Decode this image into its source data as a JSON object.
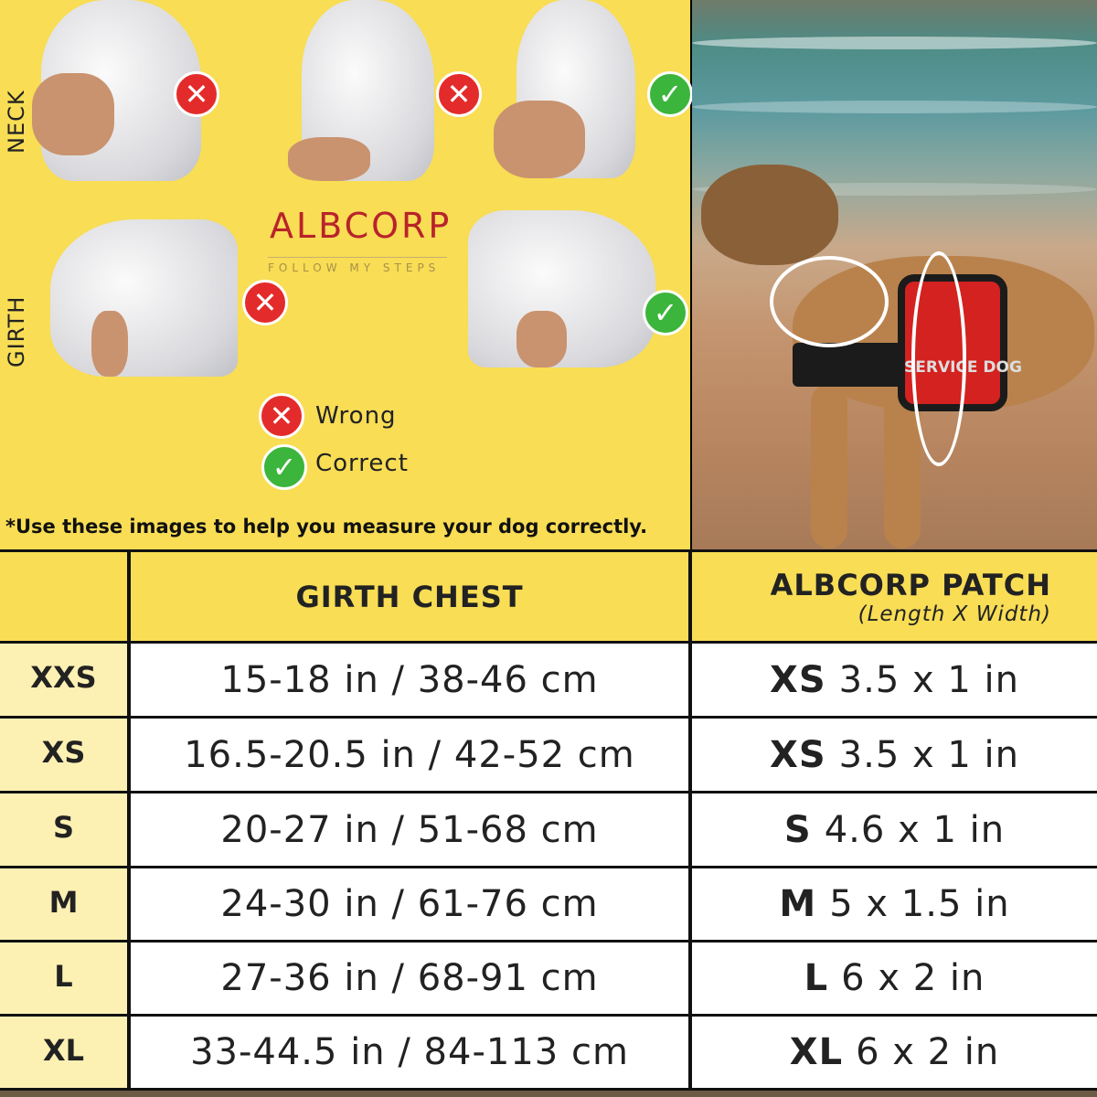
{
  "brand": {
    "name": "ALBCORP",
    "tagline": "FOLLOW MY STEPS"
  },
  "guide": {
    "row_labels": [
      "NECK",
      "GIRTH"
    ],
    "legend": [
      {
        "icon": "x-icon",
        "label": "Wrong",
        "color": "#e42b2b"
      },
      {
        "icon": "check-icon",
        "label": "Correct",
        "color": "#3bb53b"
      }
    ],
    "note": "*Use these images to help you measure your dog correctly."
  },
  "photo": {
    "patch_text": "SERVICE DOG"
  },
  "table": {
    "headers": {
      "size": "",
      "girth": "GIRTH CHEST",
      "patch": "ALBCORP PATCH",
      "patch_sub": "(Length X Width)"
    },
    "rows": [
      {
        "size": "XXS",
        "girth": "15-18 in / 38-46 cm",
        "patch_size": "XS",
        "patch_dim": "3.5 x 1 in"
      },
      {
        "size": "XS",
        "girth": "16.5-20.5 in / 42-52 cm",
        "patch_size": "XS",
        "patch_dim": "3.5 x 1 in"
      },
      {
        "size": "S",
        "girth": "20-27 in / 51-68 cm",
        "patch_size": "S",
        "patch_dim": "4.6 x 1 in"
      },
      {
        "size": "M",
        "girth": "24-30 in / 61-76 cm",
        "patch_size": "M",
        "patch_dim": "5 x 1.5 in"
      },
      {
        "size": "L",
        "girth": "27-36 in / 68-91 cm",
        "patch_size": "L",
        "patch_dim": "6 x 2 in"
      },
      {
        "size": "XL",
        "girth": "33-44.5 in / 84-113 cm",
        "patch_size": "XL",
        "patch_dim": "6 x 2 in"
      }
    ]
  },
  "colors": {
    "yellow": "#f8dd55",
    "pale_yellow": "#fdf0b3",
    "wrong": "#e42b2b",
    "correct": "#3bb53b",
    "logo": "#b8232a"
  }
}
